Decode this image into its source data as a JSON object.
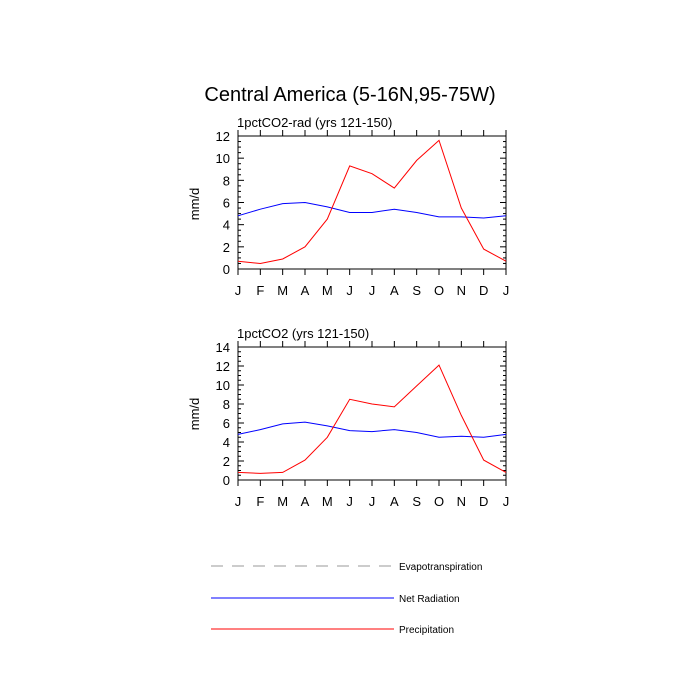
{
  "figure": {
    "title": "Central America (5-16N,95-75W)"
  },
  "chart_data": [
    {
      "type": "line",
      "title": "1pctCO2-rad (yrs 121-150)",
      "xlabel": "",
      "ylabel": "mm/d",
      "x": [
        "J",
        "F",
        "M",
        "A",
        "M",
        "J",
        "J",
        "A",
        "S",
        "O",
        "N",
        "D",
        "J"
      ],
      "ylim": [
        0,
        12
      ],
      "yticks": [
        0,
        2,
        4,
        6,
        8,
        10,
        12
      ],
      "grid": false,
      "series": [
        {
          "name": "Net Radiation",
          "color": "#0000ff",
          "values": [
            4.8,
            5.4,
            5.9,
            6.0,
            5.6,
            5.1,
            5.1,
            5.4,
            5.1,
            4.7,
            4.7,
            4.6,
            4.8
          ]
        },
        {
          "name": "Precipitation",
          "color": "#ff0000",
          "values": [
            0.7,
            0.5,
            0.9,
            2.0,
            4.5,
            9.3,
            8.6,
            7.3,
            9.8,
            11.6,
            5.5,
            1.8,
            0.7
          ]
        }
      ]
    },
    {
      "type": "line",
      "title": "1pctCO2 (yrs 121-150)",
      "xlabel": "",
      "ylabel": "mm/d",
      "x": [
        "J",
        "F",
        "M",
        "A",
        "M",
        "J",
        "J",
        "A",
        "S",
        "O",
        "N",
        "D",
        "J"
      ],
      "ylim": [
        0,
        14
      ],
      "yticks": [
        0,
        2,
        4,
        6,
        8,
        10,
        12,
        14
      ],
      "grid": false,
      "series": [
        {
          "name": "Net Radiation",
          "color": "#0000ff",
          "values": [
            4.8,
            5.3,
            5.9,
            6.1,
            5.7,
            5.2,
            5.1,
            5.3,
            5.0,
            4.5,
            4.6,
            4.5,
            4.8
          ]
        },
        {
          "name": "Precipitation",
          "color": "#ff0000",
          "values": [
            0.8,
            0.7,
            0.8,
            2.1,
            4.5,
            8.5,
            8.0,
            7.7,
            9.9,
            12.1,
            6.8,
            2.1,
            0.8
          ]
        }
      ]
    }
  ],
  "legend": {
    "placement": "bottom",
    "items": [
      {
        "label": "Evapotranspiration",
        "color": "#999999",
        "style": "dashed"
      },
      {
        "label": "Net Radiation",
        "color": "#0000ff",
        "style": "solid"
      },
      {
        "label": "Precipitation",
        "color": "#ff0000",
        "style": "solid"
      }
    ]
  }
}
